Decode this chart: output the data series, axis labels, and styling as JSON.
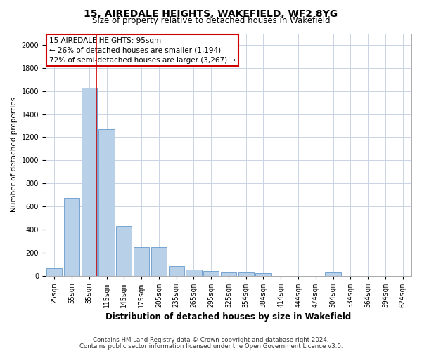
{
  "title": "15, AIREDALE HEIGHTS, WAKEFIELD, WF2 8YG",
  "subtitle": "Size of property relative to detached houses in Wakefield",
  "xlabel": "Distribution of detached houses by size in Wakefield",
  "ylabel": "Number of detached properties",
  "footnote1": "Contains HM Land Registry data © Crown copyright and database right 2024.",
  "footnote2": "Contains public sector information licensed under the Open Government Licence v3.0.",
  "categories": [
    "25sqm",
    "55sqm",
    "85sqm",
    "115sqm",
    "145sqm",
    "175sqm",
    "205sqm",
    "235sqm",
    "265sqm",
    "295sqm",
    "325sqm",
    "354sqm",
    "384sqm",
    "414sqm",
    "444sqm",
    "474sqm",
    "504sqm",
    "534sqm",
    "564sqm",
    "594sqm",
    "624sqm"
  ],
  "values": [
    65,
    670,
    1630,
    1270,
    430,
    250,
    250,
    80,
    50,
    40,
    30,
    25,
    20,
    0,
    0,
    0,
    30,
    0,
    0,
    0,
    0
  ],
  "bar_color": "#b8d0e8",
  "bar_edge_color": "#6699cc",
  "property_line_x": 2.42,
  "property_line_color": "#cc0000",
  "annotation_text": "15 AIREDALE HEIGHTS: 95sqm\n← 26% of detached houses are smaller (1,194)\n72% of semi-detached houses are larger (3,267) →",
  "annotation_box_color": "#ffffff",
  "annotation_box_edge_color": "#cc0000",
  "ylim": [
    0,
    2100
  ],
  "yticks": [
    0,
    200,
    400,
    600,
    800,
    1000,
    1200,
    1400,
    1600,
    1800,
    2000
  ],
  "grid_color": "#c8d4e4",
  "background_color": "#ffffff",
  "title_fontsize": 10,
  "subtitle_fontsize": 8.5,
  "xlabel_fontsize": 8.5,
  "ylabel_fontsize": 7.5,
  "tick_fontsize": 7,
  "annot_fontsize": 7.5,
  "footnote_fontsize": 6.2
}
